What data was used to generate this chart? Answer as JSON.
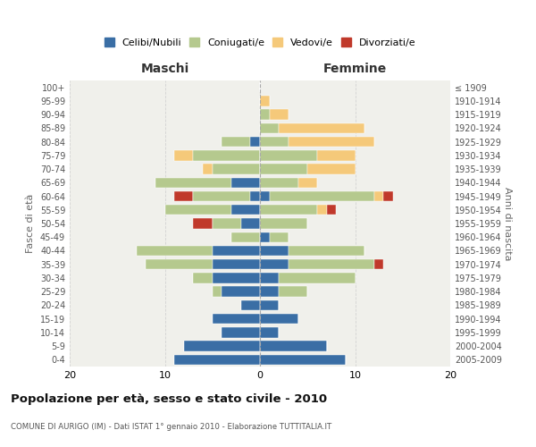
{
  "age_groups": [
    "100+",
    "95-99",
    "90-94",
    "85-89",
    "80-84",
    "75-79",
    "70-74",
    "65-69",
    "60-64",
    "55-59",
    "50-54",
    "45-49",
    "40-44",
    "35-39",
    "30-34",
    "25-29",
    "20-24",
    "15-19",
    "10-14",
    "5-9",
    "0-4"
  ],
  "birth_years": [
    "≤ 1909",
    "1910-1914",
    "1915-1919",
    "1920-1924",
    "1925-1929",
    "1930-1934",
    "1935-1939",
    "1940-1944",
    "1945-1949",
    "1950-1954",
    "1955-1959",
    "1960-1964",
    "1965-1969",
    "1970-1974",
    "1975-1979",
    "1980-1984",
    "1985-1989",
    "1990-1994",
    "1995-1999",
    "2000-2004",
    "2005-2009"
  ],
  "males": {
    "celibi": [
      0,
      0,
      0,
      0,
      1,
      0,
      0,
      3,
      1,
      3,
      2,
      0,
      5,
      5,
      5,
      4,
      2,
      5,
      4,
      8,
      9
    ],
    "coniugati": [
      0,
      0,
      0,
      0,
      3,
      7,
      5,
      8,
      6,
      7,
      3,
      3,
      8,
      7,
      2,
      1,
      0,
      0,
      0,
      0,
      0
    ],
    "vedovi": [
      0,
      0,
      0,
      0,
      0,
      2,
      1,
      0,
      0,
      0,
      0,
      0,
      0,
      0,
      0,
      0,
      0,
      0,
      0,
      0,
      0
    ],
    "divorziati": [
      0,
      0,
      0,
      0,
      0,
      0,
      0,
      0,
      2,
      0,
      2,
      0,
      0,
      0,
      0,
      0,
      0,
      0,
      0,
      0,
      0
    ]
  },
  "females": {
    "nubili": [
      0,
      0,
      0,
      0,
      0,
      0,
      0,
      0,
      1,
      0,
      0,
      1,
      3,
      3,
      2,
      2,
      2,
      4,
      2,
      7,
      9
    ],
    "coniugate": [
      0,
      0,
      1,
      2,
      3,
      6,
      5,
      4,
      11,
      6,
      5,
      2,
      8,
      9,
      8,
      3,
      0,
      0,
      0,
      0,
      0
    ],
    "vedove": [
      0,
      1,
      2,
      9,
      9,
      4,
      5,
      2,
      1,
      1,
      0,
      0,
      0,
      0,
      0,
      0,
      0,
      0,
      0,
      0,
      0
    ],
    "divorziate": [
      0,
      0,
      0,
      0,
      0,
      0,
      0,
      0,
      1,
      1,
      0,
      0,
      0,
      1,
      0,
      0,
      0,
      0,
      0,
      0,
      0
    ]
  },
  "colors": {
    "celibi": "#3a6ea5",
    "coniugati": "#b5c98e",
    "vedovi": "#f5c97a",
    "divorziati": "#c0392b"
  },
  "xlim": 20,
  "title": "Popolazione per età, sesso e stato civile - 2010",
  "subtitle": "COMUNE DI AURIGO (IM) - Dati ISTAT 1° gennaio 2010 - Elaborazione TUTTITALIA.IT",
  "ylabel_left": "Fasce di età",
  "ylabel_right": "Anni di nascita",
  "xlabel_maschi": "Maschi",
  "xlabel_femmine": "Femmine",
  "legend_labels": [
    "Celibi/Nubili",
    "Coniugati/e",
    "Vedovi/e",
    "Divorziati/e"
  ],
  "background_color": "#ffffff",
  "plot_bg": "#f0f0eb"
}
